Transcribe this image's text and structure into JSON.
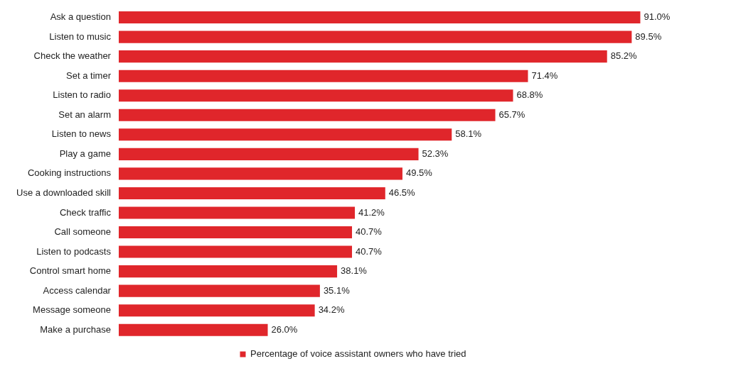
{
  "chart_data": {
    "type": "bar",
    "orientation": "horizontal",
    "categories": [
      "Ask a question",
      "Listen to music",
      "Check the weather",
      "Set a timer",
      "Listen to radio",
      "Set an alarm",
      "Listen to news",
      "Play a game",
      "Cooking instructions",
      "Use a downloaded skill",
      "Check traffic",
      "Call someone",
      "Listen to podcasts",
      "Control smart home",
      "Access calendar",
      "Message someone",
      "Make a purchase"
    ],
    "series": [
      {
        "name": "Percentage of voice assistant owners who have tried",
        "color": "#e0262b",
        "values": [
          91.0,
          89.5,
          85.2,
          71.4,
          68.8,
          65.7,
          58.1,
          52.3,
          49.5,
          46.5,
          41.2,
          40.7,
          40.7,
          38.1,
          35.1,
          34.2,
          26.0
        ],
        "value_labels": [
          "91.0%",
          "89.5%",
          "85.2%",
          "71.4%",
          "68.8%",
          "65.7%",
          "58.1%",
          "52.3%",
          "49.5%",
          "46.5%",
          "41.2%",
          "40.7%",
          "40.7%",
          "38.1%",
          "35.1%",
          "34.2%",
          "26.0%"
        ]
      }
    ],
    "legend": "bottom",
    "tick_labels": "y"
  }
}
